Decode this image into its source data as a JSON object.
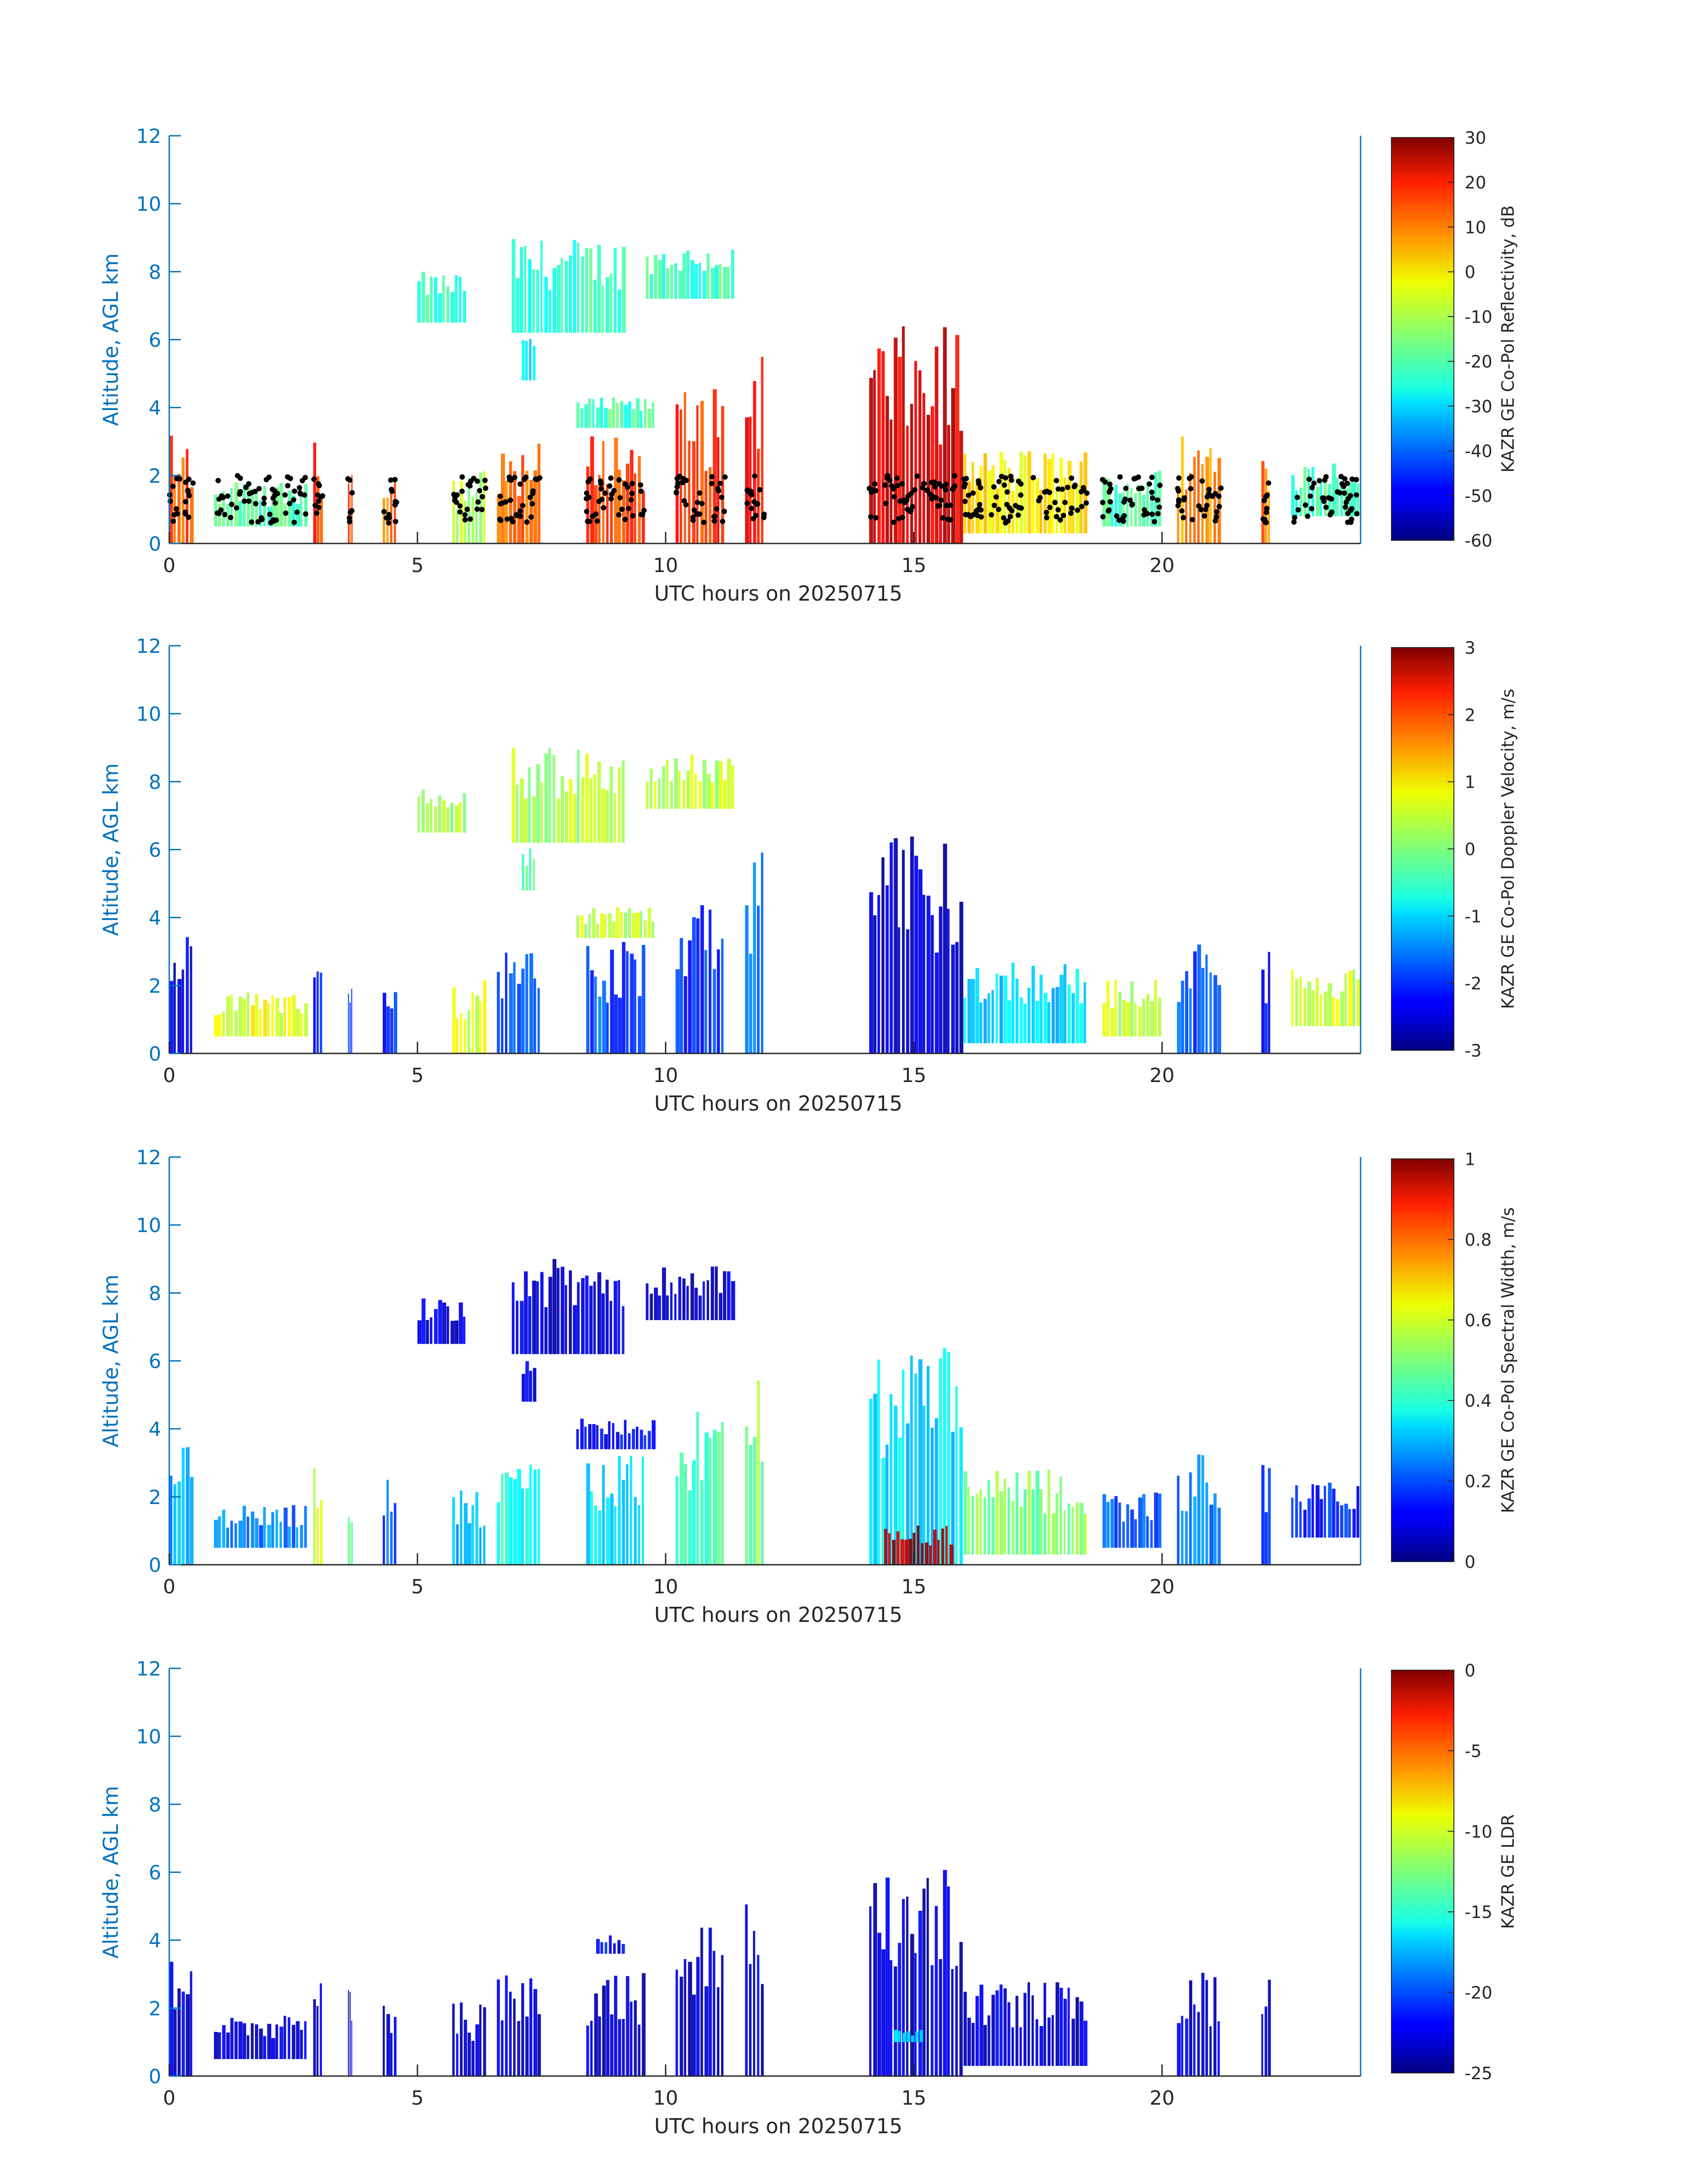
{
  "chart_data": [
    {
      "type": "heatmap",
      "xlabel": "UTC hours on 20250715",
      "ylabel": "Altitude, AGL km",
      "xlim": [
        0,
        24
      ],
      "ylim": [
        0,
        12
      ],
      "x_ticks": [
        "0",
        "5",
        "10",
        "15",
        "20"
      ],
      "y_ticks": [
        "0",
        "2",
        "4",
        "6",
        "8",
        "10",
        "12"
      ],
      "colorbar_label": "KAZR GE Co-Pol Reflectivity, dB",
      "colorbar_range": [
        -60,
        30
      ],
      "colorbar_ticks": [
        "30",
        "20",
        "10",
        "0",
        "-10",
        "-20",
        "-30",
        "-40",
        "-50",
        "-60"
      ],
      "overlay_points": "black ceilometer cloud-base dots",
      "regions": [
        {
          "x": [
            5.0,
            6.0
          ],
          "y": [
            6.5,
            8.0
          ],
          "value": -22
        },
        {
          "x": [
            6.9,
            9.2
          ],
          "y": [
            6.2,
            9.0
          ],
          "value": -22
        },
        {
          "x": [
            9.6,
            11.4
          ],
          "y": [
            7.2,
            8.8
          ],
          "value": -20
        },
        {
          "x": [
            7.1,
            7.4
          ],
          "y": [
            4.8,
            6.2
          ],
          "value": -26
        },
        {
          "x": [
            8.2,
            9.8
          ],
          "y": [
            3.4,
            4.3
          ],
          "value": -20
        },
        {
          "x": [
            0.0,
            0.5
          ],
          "y": [
            0.0,
            3.5
          ],
          "value": 12
        },
        {
          "x": [
            0.9,
            2.8
          ],
          "y": [
            0.5,
            1.8
          ],
          "value": -18
        },
        {
          "x": [
            2.9,
            3.1
          ],
          "y": [
            0.0,
            3.0
          ],
          "value": 15
        },
        {
          "x": [
            3.6,
            3.7
          ],
          "y": [
            0.0,
            2.6
          ],
          "value": 12
        },
        {
          "x": [
            4.3,
            4.6
          ],
          "y": [
            0.0,
            2.7
          ],
          "value": 8
        },
        {
          "x": [
            5.7,
            6.4
          ],
          "y": [
            0.0,
            2.2
          ],
          "value": -10
        },
        {
          "x": [
            6.6,
            7.5
          ],
          "y": [
            0.0,
            3.0
          ],
          "value": 10
        },
        {
          "x": [
            8.4,
            9.6
          ],
          "y": [
            0.0,
            3.3
          ],
          "value": 12
        },
        {
          "x": [
            10.2,
            11.2
          ],
          "y": [
            0.0,
            4.6
          ],
          "value": 15
        },
        {
          "x": [
            11.6,
            12.0
          ],
          "y": [
            0.0,
            6.0
          ],
          "value": 18
        },
        {
          "x": [
            14.1,
            16.0
          ],
          "y": [
            0.0,
            6.4
          ],
          "value": 22
        },
        {
          "x": [
            16.0,
            18.5
          ],
          "y": [
            0.3,
            2.8
          ],
          "value": -2
        },
        {
          "x": [
            18.8,
            20.0
          ],
          "y": [
            0.5,
            2.2
          ],
          "value": -18
        },
        {
          "x": [
            20.3,
            21.2
          ],
          "y": [
            0.0,
            3.3
          ],
          "value": 6
        },
        {
          "x": [
            22.0,
            22.2
          ],
          "y": [
            0.0,
            3.0
          ],
          "value": 10
        },
        {
          "x": [
            22.6,
            24.0
          ],
          "y": [
            0.8,
            2.5
          ],
          "value": -20
        }
      ]
    },
    {
      "type": "heatmap",
      "xlabel": "UTC hours on 20250715",
      "ylabel": "Altitude, AGL km",
      "xlim": [
        0,
        24
      ],
      "ylim": [
        0,
        12
      ],
      "x_ticks": [
        "0",
        "5",
        "10",
        "15",
        "20"
      ],
      "y_ticks": [
        "0",
        "2",
        "4",
        "6",
        "8",
        "10",
        "12"
      ],
      "colorbar_label": "KAZR GE Co-Pol Doppler Velocity, m/s",
      "colorbar_range": [
        -3,
        3
      ],
      "colorbar_ticks": [
        "3",
        "2",
        "1",
        "0",
        "-1",
        "-2",
        "-3"
      ],
      "regions": [
        {
          "x": [
            5.0,
            6.0
          ],
          "y": [
            6.5,
            8.0
          ],
          "value": 0.2
        },
        {
          "x": [
            6.9,
            9.2
          ],
          "y": [
            6.2,
            9.0
          ],
          "value": 0.3
        },
        {
          "x": [
            9.6,
            11.4
          ],
          "y": [
            7.2,
            8.8
          ],
          "value": 0.4
        },
        {
          "x": [
            7.1,
            7.4
          ],
          "y": [
            4.8,
            6.2
          ],
          "value": -0.2
        },
        {
          "x": [
            8.2,
            9.8
          ],
          "y": [
            3.4,
            4.3
          ],
          "value": 0.4
        },
        {
          "x": [
            0.0,
            0.5
          ],
          "y": [
            0.0,
            3.5
          ],
          "value": -2.4
        },
        {
          "x": [
            0.9,
            2.8
          ],
          "y": [
            0.5,
            1.8
          ],
          "value": 0.6
        },
        {
          "x": [
            2.9,
            3.1
          ],
          "y": [
            0.0,
            3.0
          ],
          "value": -2.2
        },
        {
          "x": [
            3.6,
            3.7
          ],
          "y": [
            0.0,
            2.6
          ],
          "value": -2.0
        },
        {
          "x": [
            4.3,
            4.6
          ],
          "y": [
            0.0,
            2.7
          ],
          "value": -2.0
        },
        {
          "x": [
            5.7,
            6.4
          ],
          "y": [
            0.0,
            2.2
          ],
          "value": 0.5
        },
        {
          "x": [
            6.6,
            7.5
          ],
          "y": [
            0.0,
            3.0
          ],
          "value": -1.8
        },
        {
          "x": [
            8.4,
            9.6
          ],
          "y": [
            0.0,
            3.3
          ],
          "value": -1.8
        },
        {
          "x": [
            10.2,
            11.2
          ],
          "y": [
            0.0,
            4.6
          ],
          "value": -2.0
        },
        {
          "x": [
            11.6,
            12.0
          ],
          "y": [
            0.0,
            6.0
          ],
          "value": -1.6
        },
        {
          "x": [
            14.1,
            16.0
          ],
          "y": [
            0.0,
            6.4
          ],
          "value": -2.6
        },
        {
          "x": [
            16.0,
            18.5
          ],
          "y": [
            0.3,
            2.8
          ],
          "value": -1.0
        },
        {
          "x": [
            18.8,
            20.0
          ],
          "y": [
            0.5,
            2.2
          ],
          "value": 0.4
        },
        {
          "x": [
            20.3,
            21.2
          ],
          "y": [
            0.0,
            3.3
          ],
          "value": -1.8
        },
        {
          "x": [
            22.0,
            22.2
          ],
          "y": [
            0.0,
            3.0
          ],
          "value": -2.2
        },
        {
          "x": [
            22.6,
            24.0
          ],
          "y": [
            0.8,
            2.5
          ],
          "value": 0.5
        }
      ]
    },
    {
      "type": "heatmap",
      "xlabel": "UTC hours on 20250715",
      "ylabel": "Altitude, AGL km",
      "xlim": [
        0,
        24
      ],
      "ylim": [
        0,
        12
      ],
      "x_ticks": [
        "0",
        "5",
        "10",
        "15",
        "20"
      ],
      "y_ticks": [
        "0",
        "2",
        "4",
        "6",
        "8",
        "10",
        "12"
      ],
      "colorbar_label": "KAZR GE Co-Pol Spectral Width, m/s",
      "colorbar_range": [
        0,
        1
      ],
      "colorbar_ticks": [
        "1",
        "0.8",
        "0.6",
        "0.4",
        "0.2",
        "0"
      ],
      "regions": [
        {
          "x": [
            5.0,
            6.0
          ],
          "y": [
            6.5,
            8.0
          ],
          "value": 0.08
        },
        {
          "x": [
            6.9,
            9.2
          ],
          "y": [
            6.2,
            9.0
          ],
          "value": 0.08
        },
        {
          "x": [
            9.6,
            11.4
          ],
          "y": [
            7.2,
            8.8
          ],
          "value": 0.08
        },
        {
          "x": [
            7.1,
            7.4
          ],
          "y": [
            4.8,
            6.2
          ],
          "value": 0.1
        },
        {
          "x": [
            8.2,
            9.8
          ],
          "y": [
            3.4,
            4.3
          ],
          "value": 0.12
        },
        {
          "x": [
            0.0,
            0.5
          ],
          "y": [
            0.0,
            3.5
          ],
          "value": 0.3
        },
        {
          "x": [
            0.9,
            2.8
          ],
          "y": [
            0.5,
            1.8
          ],
          "value": 0.25
        },
        {
          "x": [
            2.9,
            3.1
          ],
          "y": [
            0.0,
            3.0
          ],
          "value": 0.6
        },
        {
          "x": [
            3.6,
            3.7
          ],
          "y": [
            0.0,
            2.6
          ],
          "value": 0.5
        },
        {
          "x": [
            4.3,
            4.6
          ],
          "y": [
            0.0,
            2.7
          ],
          "value": 0.2
        },
        {
          "x": [
            5.7,
            6.4
          ],
          "y": [
            0.0,
            2.2
          ],
          "value": 0.3
        },
        {
          "x": [
            6.6,
            7.5
          ],
          "y": [
            0.0,
            3.0
          ],
          "value": 0.4
        },
        {
          "x": [
            8.4,
            9.6
          ],
          "y": [
            0.0,
            3.3
          ],
          "value": 0.35
        },
        {
          "x": [
            10.2,
            11.2
          ],
          "y": [
            0.0,
            4.6
          ],
          "value": 0.45
        },
        {
          "x": [
            11.6,
            12.0
          ],
          "y": [
            0.0,
            6.0
          ],
          "value": 0.5
        },
        {
          "x": [
            14.1,
            16.0
          ],
          "y": [
            0.0,
            6.4
          ],
          "value": 0.35
        },
        {
          "x": [
            14.4,
            15.8
          ],
          "y": [
            0.0,
            1.2
          ],
          "value": 0.95
        },
        {
          "x": [
            16.0,
            18.5
          ],
          "y": [
            0.3,
            2.8
          ],
          "value": 0.5
        },
        {
          "x": [
            18.8,
            20.0
          ],
          "y": [
            0.5,
            2.2
          ],
          "value": 0.2
        },
        {
          "x": [
            20.3,
            21.2
          ],
          "y": [
            0.0,
            3.3
          ],
          "value": 0.25
        },
        {
          "x": [
            22.0,
            22.2
          ],
          "y": [
            0.0,
            3.0
          ],
          "value": 0.2
        },
        {
          "x": [
            22.6,
            24.0
          ],
          "y": [
            0.8,
            2.5
          ],
          "value": 0.15
        }
      ]
    },
    {
      "type": "heatmap",
      "xlabel": "UTC hours on 20250715",
      "ylabel": "Altitude, AGL km",
      "xlim": [
        0,
        24
      ],
      "ylim": [
        0,
        12
      ],
      "x_ticks": [
        "0",
        "5",
        "10",
        "15",
        "20"
      ],
      "y_ticks": [
        "0",
        "2",
        "4",
        "6",
        "8",
        "10",
        "12"
      ],
      "colorbar_label": "KAZR GE LDR",
      "colorbar_range": [
        -25,
        0
      ],
      "colorbar_ticks": [
        "0",
        "-5",
        "-10",
        "-15",
        "-20",
        "-25"
      ],
      "regions": [
        {
          "x": [
            0.0,
            0.5
          ],
          "y": [
            0.0,
            3.5
          ],
          "value": -23
        },
        {
          "x": [
            0.9,
            2.8
          ],
          "y": [
            0.5,
            1.8
          ],
          "value": -23
        },
        {
          "x": [
            2.9,
            3.1
          ],
          "y": [
            0.0,
            3.0
          ],
          "value": -23
        },
        {
          "x": [
            3.6,
            3.7
          ],
          "y": [
            0.0,
            2.6
          ],
          "value": -23
        },
        {
          "x": [
            4.3,
            4.6
          ],
          "y": [
            0.0,
            2.7
          ],
          "value": -23
        },
        {
          "x": [
            5.7,
            6.4
          ],
          "y": [
            0.0,
            2.2
          ],
          "value": -23
        },
        {
          "x": [
            6.6,
            7.5
          ],
          "y": [
            0.0,
            3.0
          ],
          "value": -23
        },
        {
          "x": [
            8.4,
            9.6
          ],
          "y": [
            0.0,
            3.3
          ],
          "value": -23
        },
        {
          "x": [
            8.6,
            9.2
          ],
          "y": [
            3.6,
            4.2
          ],
          "value": -22
        },
        {
          "x": [
            10.2,
            11.2
          ],
          "y": [
            0.0,
            4.6
          ],
          "value": -23
        },
        {
          "x": [
            11.6,
            12.0
          ],
          "y": [
            0.0,
            6.0
          ],
          "value": -23
        },
        {
          "x": [
            14.1,
            16.0
          ],
          "y": [
            0.0,
            6.1
          ],
          "value": -23
        },
        {
          "x": [
            14.6,
            15.2
          ],
          "y": [
            1.0,
            1.4
          ],
          "value": -17
        },
        {
          "x": [
            16.0,
            18.5
          ],
          "y": [
            0.3,
            2.8
          ],
          "value": -23
        },
        {
          "x": [
            20.3,
            21.2
          ],
          "y": [
            0.0,
            3.1
          ],
          "value": -23
        },
        {
          "x": [
            22.0,
            22.2
          ],
          "y": [
            0.0,
            2.9
          ],
          "value": -23
        }
      ]
    }
  ]
}
